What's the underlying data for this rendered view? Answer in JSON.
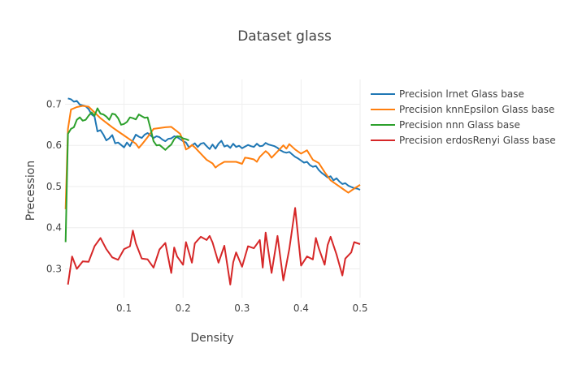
{
  "chart_data": {
    "type": "line",
    "title": "Dataset glass",
    "xlabel": "Density",
    "ylabel": "Precession",
    "xlim": [
      0,
      0.5
    ],
    "ylim": [
      0.23,
      0.76
    ],
    "xticks": [
      0.1,
      0.2,
      0.3,
      0.4,
      0.5
    ],
    "yticks": [
      0.3,
      0.4,
      0.5,
      0.6,
      0.7
    ],
    "grid": true,
    "legend_position": "top-right",
    "series": [
      {
        "name": "Precision lrnet Glass base",
        "color": "#1f77b4",
        "points": [
          [
            0.005,
            0.714
          ],
          [
            0.01,
            0.712
          ],
          [
            0.015,
            0.706
          ],
          [
            0.02,
            0.708
          ],
          [
            0.025,
            0.699
          ],
          [
            0.03,
            0.697
          ],
          [
            0.035,
            0.695
          ],
          [
            0.04,
            0.688
          ],
          [
            0.045,
            0.675
          ],
          [
            0.05,
            0.67
          ],
          [
            0.055,
            0.634
          ],
          [
            0.06,
            0.637
          ],
          [
            0.065,
            0.626
          ],
          [
            0.07,
            0.612
          ],
          [
            0.075,
            0.617
          ],
          [
            0.08,
            0.625
          ],
          [
            0.085,
            0.605
          ],
          [
            0.09,
            0.607
          ],
          [
            0.095,
            0.601
          ],
          [
            0.1,
            0.595
          ],
          [
            0.105,
            0.607
          ],
          [
            0.11,
            0.598
          ],
          [
            0.115,
            0.612
          ],
          [
            0.12,
            0.626
          ],
          [
            0.125,
            0.621
          ],
          [
            0.13,
            0.618
          ],
          [
            0.135,
            0.626
          ],
          [
            0.14,
            0.63
          ],
          [
            0.145,
            0.624
          ],
          [
            0.15,
            0.618
          ],
          [
            0.155,
            0.622
          ],
          [
            0.16,
            0.62
          ],
          [
            0.165,
            0.614
          ],
          [
            0.17,
            0.61
          ],
          [
            0.175,
            0.616
          ],
          [
            0.18,
            0.617
          ],
          [
            0.185,
            0.622
          ],
          [
            0.19,
            0.62
          ],
          [
            0.195,
            0.615
          ],
          [
            0.2,
            0.61
          ],
          [
            0.205,
            0.607
          ],
          [
            0.21,
            0.595
          ],
          [
            0.215,
            0.6
          ],
          [
            0.22,
            0.605
          ],
          [
            0.225,
            0.596
          ],
          [
            0.23,
            0.604
          ],
          [
            0.235,
            0.606
          ],
          [
            0.24,
            0.598
          ],
          [
            0.245,
            0.591
          ],
          [
            0.25,
            0.602
          ],
          [
            0.255,
            0.592
          ],
          [
            0.26,
            0.604
          ],
          [
            0.265,
            0.611
          ],
          [
            0.27,
            0.597
          ],
          [
            0.275,
            0.6
          ],
          [
            0.28,
            0.594
          ],
          [
            0.285,
            0.604
          ],
          [
            0.29,
            0.596
          ],
          [
            0.295,
            0.599
          ],
          [
            0.3,
            0.593
          ],
          [
            0.305,
            0.597
          ],
          [
            0.31,
            0.601
          ],
          [
            0.315,
            0.598
          ],
          [
            0.32,
            0.596
          ],
          [
            0.325,
            0.604
          ],
          [
            0.33,
            0.598
          ],
          [
            0.335,
            0.599
          ],
          [
            0.34,
            0.606
          ],
          [
            0.345,
            0.602
          ],
          [
            0.35,
            0.6
          ],
          [
            0.355,
            0.598
          ],
          [
            0.36,
            0.594
          ],
          [
            0.365,
            0.588
          ],
          [
            0.37,
            0.584
          ],
          [
            0.375,
            0.582
          ],
          [
            0.38,
            0.584
          ],
          [
            0.385,
            0.578
          ],
          [
            0.39,
            0.572
          ],
          [
            0.395,
            0.568
          ],
          [
            0.4,
            0.563
          ],
          [
            0.405,
            0.558
          ],
          [
            0.41,
            0.56
          ],
          [
            0.415,
            0.552
          ],
          [
            0.42,
            0.548
          ],
          [
            0.425,
            0.55
          ],
          [
            0.43,
            0.54
          ],
          [
            0.435,
            0.533
          ],
          [
            0.44,
            0.528
          ],
          [
            0.445,
            0.522
          ],
          [
            0.45,
            0.525
          ],
          [
            0.455,
            0.515
          ],
          [
            0.46,
            0.52
          ],
          [
            0.465,
            0.512
          ],
          [
            0.47,
            0.506
          ],
          [
            0.475,
            0.508
          ],
          [
            0.48,
            0.502
          ],
          [
            0.485,
            0.499
          ],
          [
            0.49,
            0.496
          ],
          [
            0.495,
            0.495
          ],
          [
            0.5,
            0.492
          ]
        ]
      },
      {
        "name": "Precision knnEpsilon Glass base",
        "color": "#ff7f0e",
        "points": [
          [
            0.001,
            0.445
          ],
          [
            0.005,
            0.64
          ],
          [
            0.01,
            0.687
          ],
          [
            0.02,
            0.693
          ],
          [
            0.03,
            0.696
          ],
          [
            0.04,
            0.694
          ],
          [
            0.05,
            0.68
          ],
          [
            0.06,
            0.666
          ],
          [
            0.07,
            0.655
          ],
          [
            0.08,
            0.644
          ],
          [
            0.09,
            0.634
          ],
          [
            0.1,
            0.624
          ],
          [
            0.11,
            0.614
          ],
          [
            0.12,
            0.604
          ],
          [
            0.125,
            0.594
          ],
          [
            0.13,
            0.602
          ],
          [
            0.14,
            0.62
          ],
          [
            0.15,
            0.64
          ],
          [
            0.16,
            0.642
          ],
          [
            0.17,
            0.644
          ],
          [
            0.18,
            0.645
          ],
          [
            0.19,
            0.634
          ],
          [
            0.195,
            0.628
          ],
          [
            0.2,
            0.612
          ],
          [
            0.205,
            0.59
          ],
          [
            0.21,
            0.594
          ],
          [
            0.215,
            0.601
          ],
          [
            0.22,
            0.595
          ],
          [
            0.23,
            0.58
          ],
          [
            0.24,
            0.565
          ],
          [
            0.25,
            0.556
          ],
          [
            0.255,
            0.546
          ],
          [
            0.26,
            0.552
          ],
          [
            0.27,
            0.56
          ],
          [
            0.28,
            0.56
          ],
          [
            0.29,
            0.56
          ],
          [
            0.3,
            0.555
          ],
          [
            0.305,
            0.57
          ],
          [
            0.31,
            0.569
          ],
          [
            0.32,
            0.566
          ],
          [
            0.325,
            0.56
          ],
          [
            0.33,
            0.572
          ],
          [
            0.34,
            0.586
          ],
          [
            0.345,
            0.58
          ],
          [
            0.35,
            0.57
          ],
          [
            0.36,
            0.585
          ],
          [
            0.37,
            0.6
          ],
          [
            0.375,
            0.592
          ],
          [
            0.38,
            0.603
          ],
          [
            0.39,
            0.59
          ],
          [
            0.4,
            0.58
          ],
          [
            0.41,
            0.588
          ],
          [
            0.42,
            0.565
          ],
          [
            0.43,
            0.557
          ],
          [
            0.44,
            0.535
          ],
          [
            0.45,
            0.515
          ],
          [
            0.46,
            0.505
          ],
          [
            0.47,
            0.495
          ],
          [
            0.48,
            0.485
          ],
          [
            0.49,
            0.495
          ],
          [
            0.5,
            0.504
          ]
        ]
      },
      {
        "name": "Precision nnn Glass base",
        "color": "#2ca02c",
        "points": [
          [
            0.001,
            0.365
          ],
          [
            0.005,
            0.628
          ],
          [
            0.01,
            0.64
          ],
          [
            0.015,
            0.644
          ],
          [
            0.02,
            0.662
          ],
          [
            0.025,
            0.668
          ],
          [
            0.03,
            0.66
          ],
          [
            0.035,
            0.662
          ],
          [
            0.04,
            0.672
          ],
          [
            0.045,
            0.68
          ],
          [
            0.05,
            0.672
          ],
          [
            0.055,
            0.69
          ],
          [
            0.06,
            0.677
          ],
          [
            0.065,
            0.675
          ],
          [
            0.07,
            0.67
          ],
          [
            0.075,
            0.662
          ],
          [
            0.08,
            0.677
          ],
          [
            0.085,
            0.675
          ],
          [
            0.09,
            0.666
          ],
          [
            0.095,
            0.65
          ],
          [
            0.1,
            0.652
          ],
          [
            0.105,
            0.657
          ],
          [
            0.11,
            0.668
          ],
          [
            0.115,
            0.666
          ],
          [
            0.12,
            0.663
          ],
          [
            0.125,
            0.675
          ],
          [
            0.13,
            0.671
          ],
          [
            0.135,
            0.667
          ],
          [
            0.14,
            0.668
          ],
          [
            0.145,
            0.64
          ],
          [
            0.15,
            0.61
          ],
          [
            0.155,
            0.6
          ],
          [
            0.16,
            0.601
          ],
          [
            0.165,
            0.595
          ],
          [
            0.17,
            0.589
          ],
          [
            0.175,
            0.596
          ],
          [
            0.18,
            0.602
          ],
          [
            0.185,
            0.615
          ],
          [
            0.19,
            0.622
          ],
          [
            0.195,
            0.621
          ],
          [
            0.2,
            0.617
          ],
          [
            0.205,
            0.615
          ],
          [
            0.21,
            0.612
          ]
        ]
      },
      {
        "name": "Precision erdosRenyi Glass base",
        "color": "#d62728",
        "points": [
          [
            0.005,
            0.262
          ],
          [
            0.012,
            0.33
          ],
          [
            0.02,
            0.3
          ],
          [
            0.03,
            0.318
          ],
          [
            0.04,
            0.317
          ],
          [
            0.05,
            0.355
          ],
          [
            0.06,
            0.375
          ],
          [
            0.07,
            0.348
          ],
          [
            0.08,
            0.328
          ],
          [
            0.09,
            0.322
          ],
          [
            0.1,
            0.348
          ],
          [
            0.11,
            0.355
          ],
          [
            0.115,
            0.393
          ],
          [
            0.12,
            0.362
          ],
          [
            0.13,
            0.325
          ],
          [
            0.14,
            0.323
          ],
          [
            0.15,
            0.303
          ],
          [
            0.16,
            0.347
          ],
          [
            0.17,
            0.363
          ],
          [
            0.18,
            0.29
          ],
          [
            0.185,
            0.352
          ],
          [
            0.19,
            0.33
          ],
          [
            0.2,
            0.31
          ],
          [
            0.205,
            0.365
          ],
          [
            0.215,
            0.315
          ],
          [
            0.22,
            0.362
          ],
          [
            0.23,
            0.378
          ],
          [
            0.24,
            0.37
          ],
          [
            0.245,
            0.38
          ],
          [
            0.25,
            0.364
          ],
          [
            0.26,
            0.315
          ],
          [
            0.27,
            0.356
          ],
          [
            0.28,
            0.262
          ],
          [
            0.285,
            0.316
          ],
          [
            0.29,
            0.34
          ],
          [
            0.3,
            0.305
          ],
          [
            0.31,
            0.355
          ],
          [
            0.32,
            0.35
          ],
          [
            0.33,
            0.37
          ],
          [
            0.335,
            0.303
          ],
          [
            0.34,
            0.388
          ],
          [
            0.35,
            0.29
          ],
          [
            0.36,
            0.38
          ],
          [
            0.37,
            0.272
          ],
          [
            0.38,
            0.348
          ],
          [
            0.39,
            0.448
          ],
          [
            0.4,
            0.308
          ],
          [
            0.41,
            0.33
          ],
          [
            0.42,
            0.323
          ],
          [
            0.425,
            0.375
          ],
          [
            0.43,
            0.35
          ],
          [
            0.44,
            0.31
          ],
          [
            0.445,
            0.358
          ],
          [
            0.45,
            0.378
          ],
          [
            0.46,
            0.335
          ],
          [
            0.47,
            0.284
          ],
          [
            0.475,
            0.325
          ],
          [
            0.485,
            0.34
          ],
          [
            0.49,
            0.365
          ],
          [
            0.5,
            0.36
          ]
        ]
      }
    ]
  }
}
